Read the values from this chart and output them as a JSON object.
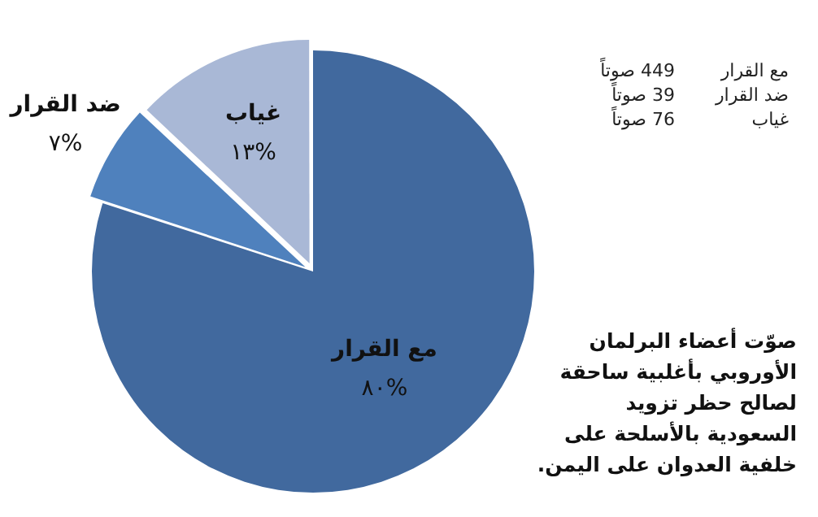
{
  "chart_data": {
    "type": "pie",
    "categories": [
      "مع القرار",
      "ضد القرار",
      "غياب"
    ],
    "values": [
      80,
      7,
      13
    ],
    "value_labels": [
      "%٨٠",
      "%٧",
      "%١٣"
    ],
    "colors": [
      "#41699e",
      "#4f81bd",
      "#a9b8d6"
    ],
    "legend": false,
    "annotations": [
      "مع القرار 449 صوتاً",
      "ضد القرار 39 صوتاً",
      "غياب 76 صوتاً",
      "صوّت أعضاء البرلمان الأوروبي بأغلبية ساحقة لصالح حظر تزويد السعودية بالأسلحة على خلفية العدوان على اليمن."
    ]
  }
}
